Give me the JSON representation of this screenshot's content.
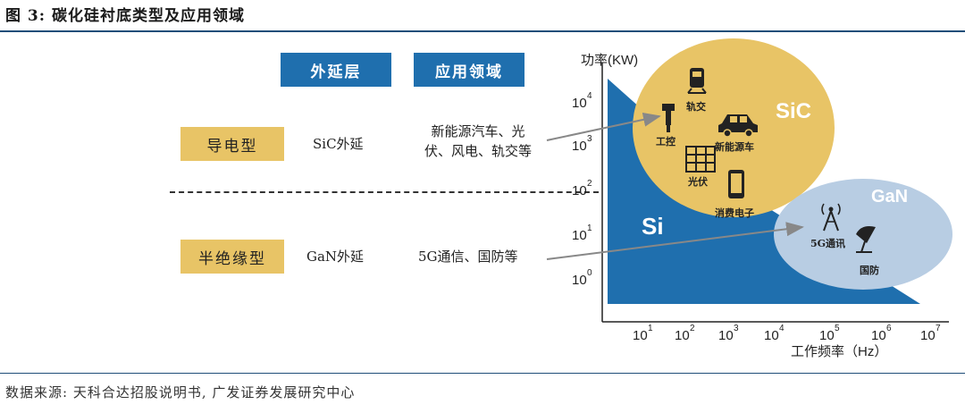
{
  "title": "图 3: 碳化硅衬底类型及应用领域",
  "source": "数据来源: 天科合达招股说明书, 广发证券发展研究中心",
  "table": {
    "headers": [
      "外延层",
      "应用领域"
    ],
    "rows": [
      {
        "type": "导电型",
        "epi": "SiC外延",
        "app_line1": "新能源汽车、光",
        "app_line2": "伏、风电、轨交等"
      },
      {
        "type": "半绝缘型",
        "epi": "GaN外延",
        "app_line1": "5G通信、国防等",
        "app_line2": ""
      }
    ]
  },
  "diagram": {
    "y_axis_label": "功率(KW)",
    "x_axis_label": "工作频率（Hz）",
    "y_ticks": [
      "0",
      "1",
      "2",
      "3",
      "4"
    ],
    "x_ticks": [
      "1",
      "2",
      "3",
      "4",
      "5",
      "6",
      "7"
    ],
    "tick_base": "10",
    "regions": {
      "si": "Si",
      "sic": "SiC",
      "gan": "GaN"
    },
    "sic_apps": [
      "轨交",
      "工控",
      "新能源车",
      "光伏",
      "消费电子"
    ],
    "gan_apps": [
      "5G通讯",
      "国防"
    ],
    "colors": {
      "si": "#1f6fae",
      "sic": "#e8c466",
      "gan": "#b8cde3",
      "header": "#1f6fae"
    }
  }
}
